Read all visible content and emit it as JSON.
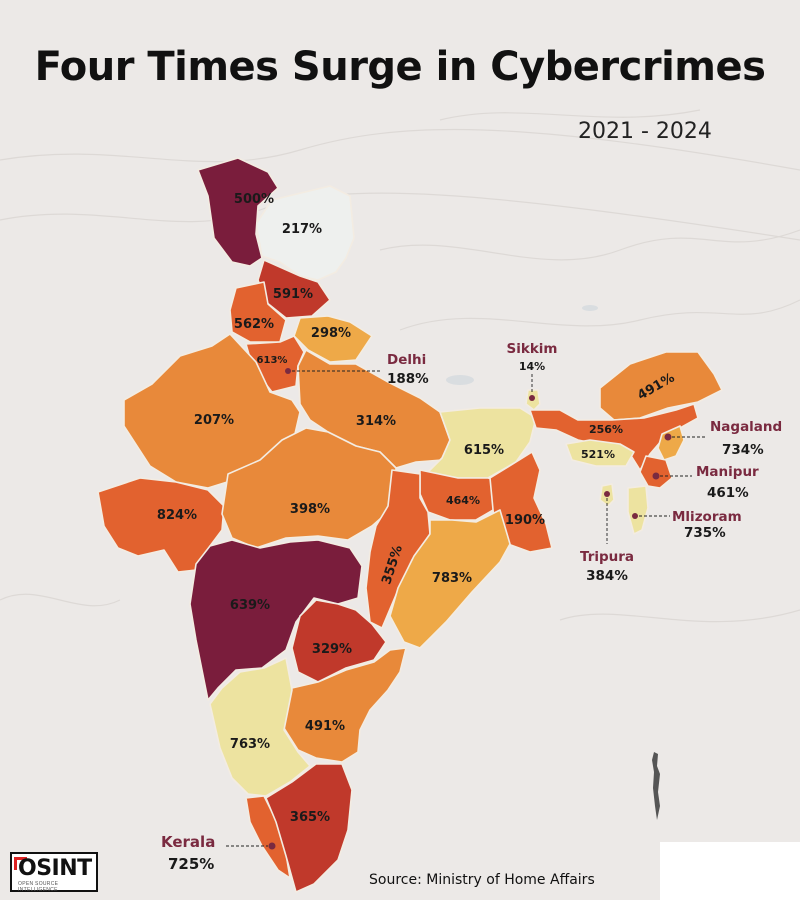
{
  "header": {
    "title": "Four Times Surge in Cybercrimes",
    "period": "2021 - 2024"
  },
  "source": "Source: Ministry of Home Affairs",
  "logo": {
    "text": "OSINT",
    "tagline": "OPEN SOURCE INTELLIGENCE"
  },
  "colors": {
    "background": "#ece9e7",
    "very_dark": "#7a1d3c",
    "dark_red": "#c0392b",
    "red_orange": "#e2622f",
    "orange": "#e8893a",
    "light_orange": "#eea948",
    "pale_yellow": "#ede3a0",
    "very_pale": "#eef0ee",
    "label_accent": "#7a2a40"
  },
  "regions": [
    {
      "id": "jammu-kashmir",
      "value": "500%"
    },
    {
      "id": "ladakh",
      "value": "217%"
    },
    {
      "id": "himachal-pradesh",
      "value": "591%"
    },
    {
      "id": "punjab",
      "value": "562%"
    },
    {
      "id": "uttarakhand",
      "value": "298%"
    },
    {
      "id": "haryana",
      "value": "613%"
    },
    {
      "id": "rajasthan",
      "value": "207%"
    },
    {
      "id": "uttar-pradesh",
      "value": "314%"
    },
    {
      "id": "bihar",
      "value": "615%"
    },
    {
      "id": "gujarat",
      "value": "824%"
    },
    {
      "id": "madhya-pradesh",
      "value": "398%"
    },
    {
      "id": "jharkhand",
      "value": "464%"
    },
    {
      "id": "west-bengal",
      "value": "190%"
    },
    {
      "id": "chhattisgarh",
      "value": "355%"
    },
    {
      "id": "odisha",
      "value": "783%"
    },
    {
      "id": "maharashtra",
      "value": "639%"
    },
    {
      "id": "telangana",
      "value": "329%"
    },
    {
      "id": "andhra-pradesh",
      "value": "491%"
    },
    {
      "id": "karnataka",
      "value": "763%"
    },
    {
      "id": "tamil-nadu",
      "value": "365%"
    },
    {
      "id": "arunachal-pradesh",
      "value": "491%"
    },
    {
      "id": "assam",
      "value": "256%"
    },
    {
      "id": "meghalaya",
      "value": "521%"
    }
  ],
  "callouts": [
    {
      "id": "delhi",
      "name": "Delhi",
      "value": "188%"
    },
    {
      "id": "sikkim",
      "name": "Sikkim",
      "value": "14%"
    },
    {
      "id": "nagaland",
      "name": "Nagaland",
      "value": "734%"
    },
    {
      "id": "manipur",
      "name": "Manipur",
      "value": "461%"
    },
    {
      "id": "mizoram",
      "name": "Mlizoram",
      "value": "735%"
    },
    {
      "id": "tripura",
      "name": "Tripura",
      "value": "384%"
    },
    {
      "id": "kerala",
      "name": "Kerala",
      "value": "725%"
    }
  ]
}
